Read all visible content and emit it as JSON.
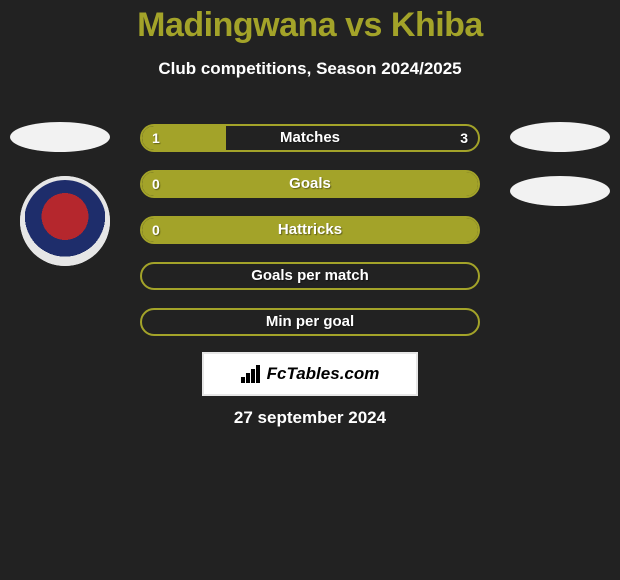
{
  "title": "Madingwana vs Khiba",
  "subtitle": "Club competitions, Season 2024/2025",
  "date": "27 september 2024",
  "logo_text": "FcTables.com",
  "colors": {
    "background": "#222222",
    "accent": "#a3a329",
    "bar_border": "#a3a329",
    "bar_fill": "#a3a329",
    "text": "#ffffff"
  },
  "rows": [
    {
      "label": "Matches",
      "left": "1",
      "right": "3",
      "left_pct": 25
    },
    {
      "label": "Goals",
      "left": "0",
      "right": "",
      "left_pct": 100
    },
    {
      "label": "Hattricks",
      "left": "0",
      "right": "",
      "left_pct": 100
    },
    {
      "label": "Goals per match",
      "left": "",
      "right": "",
      "left_pct": 0
    },
    {
      "label": "Min per goal",
      "left": "",
      "right": "",
      "left_pct": 0
    }
  ]
}
